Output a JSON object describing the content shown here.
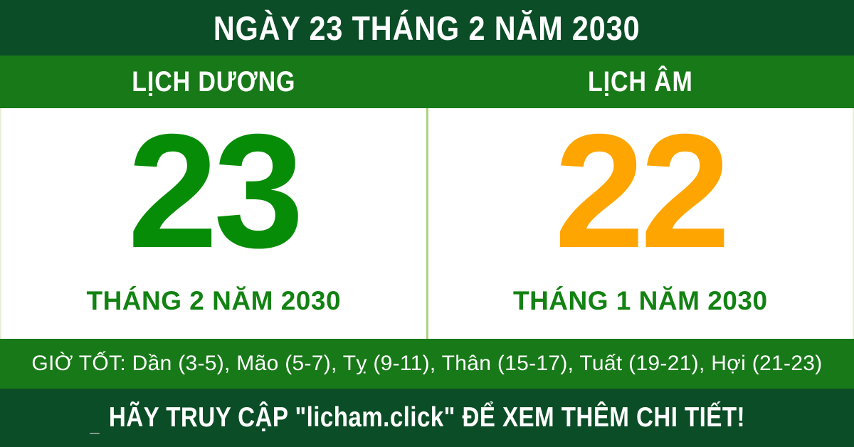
{
  "page": {
    "title": "NGÀY 23 THÁNG 2 NĂM 2030"
  },
  "calendar": {
    "solar": {
      "header": "LỊCH DƯƠNG",
      "day": "23",
      "month_year": "THÁNG 2 NĂM 2030"
    },
    "lunar": {
      "header": "LỊCH ÂM",
      "day": "22",
      "month_year": "THÁNG 1 NĂM 2030"
    }
  },
  "good_hours": {
    "text": "GIỜ TỐT: Dần (3-5), Mão (5-7), Tỵ (9-11), Thân (15-17), Tuất (19-21), Hợi (21-23)"
  },
  "footer": {
    "text": "HÃY TRUY CẬP \"licham.click\" ĐỂ XEM THÊM CHI TIẾT!"
  },
  "colors": {
    "dark_green": "#0B4D26",
    "medium_green": "#187918",
    "solar_number_green": "#078C07",
    "lunar_number_orange": "#FFA502",
    "month_label_green": "#128212",
    "panel_divider_green": "#A8D47E",
    "text_white": "#FFFFFF"
  }
}
